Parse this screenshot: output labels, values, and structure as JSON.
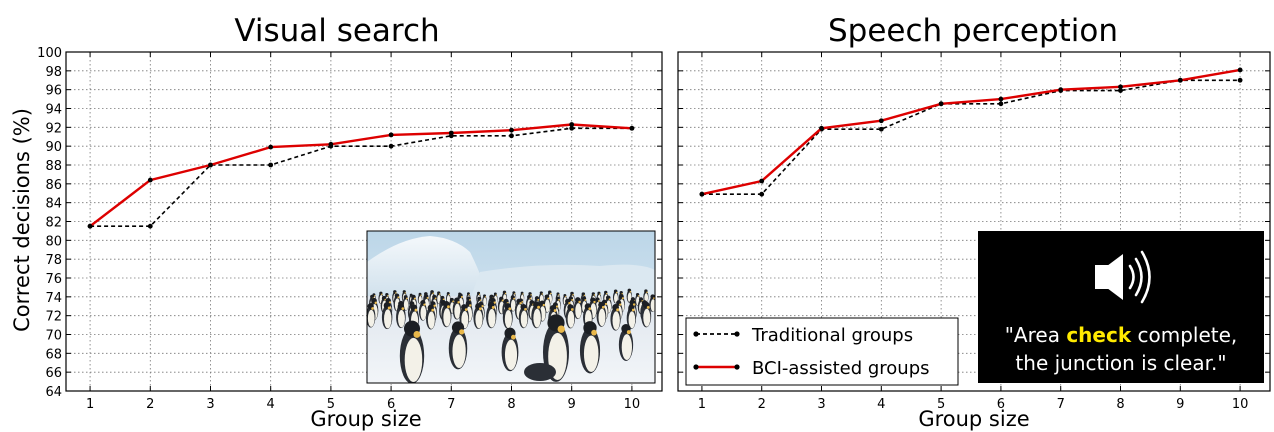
{
  "chart_data": [
    {
      "type": "line",
      "title": "Visual search",
      "xlabel": "Group size",
      "ylabel": "Correct decisions (%)",
      "xlim": [
        0.6,
        10.5
      ],
      "ylim": [
        64,
        100
      ],
      "grid": true,
      "x_ticks": [
        "1",
        "2",
        "3",
        "4",
        "5",
        "6",
        "7",
        "8",
        "9",
        "10"
      ],
      "y_ticks": [
        "64",
        "66",
        "68",
        "70",
        "72",
        "74",
        "76",
        "78",
        "80",
        "82",
        "84",
        "86",
        "88",
        "90",
        "92",
        "94",
        "96",
        "98",
        "100"
      ],
      "x": [
        1,
        2,
        3,
        4,
        5,
        6,
        7,
        8,
        9,
        10
      ],
      "series": [
        {
          "name": "Traditional groups",
          "color": "#000000",
          "style": "dashed",
          "values": [
            81.5,
            81.5,
            88.0,
            88.0,
            90.0,
            90.0,
            91.1,
            91.1,
            91.9,
            91.9
          ]
        },
        {
          "name": "BCI-assisted groups",
          "color": "#dd0000",
          "style": "solid",
          "values": [
            81.5,
            86.4,
            88.0,
            89.9,
            90.2,
            91.2,
            91.4,
            91.7,
            92.3,
            91.9
          ]
        }
      ],
      "inset": {
        "kind": "photo",
        "icon": "penguins-photo"
      }
    },
    {
      "type": "line",
      "title": "Speech perception",
      "xlabel": "Group size",
      "xlim": [
        0.6,
        10.5
      ],
      "ylim": [
        64,
        100
      ],
      "grid": true,
      "x_ticks": [
        "1",
        "2",
        "3",
        "4",
        "5",
        "6",
        "7",
        "8",
        "9",
        "10"
      ],
      "x": [
        1,
        2,
        3,
        4,
        5,
        6,
        7,
        8,
        9,
        10
      ],
      "series": [
        {
          "name": "Traditional groups",
          "color": "#000000",
          "style": "dashed",
          "values": [
            84.9,
            84.9,
            91.8,
            91.8,
            94.5,
            94.5,
            95.9,
            95.9,
            97.0,
            97.0
          ]
        },
        {
          "name": "BCI-assisted groups",
          "color": "#dd0000",
          "style": "solid",
          "values": [
            84.9,
            86.3,
            91.9,
            92.7,
            94.5,
            95.0,
            96.0,
            96.3,
            97.0,
            98.1
          ]
        }
      ],
      "legend": {
        "placement": "lower-left",
        "entries": [
          "Traditional groups",
          "BCI-assisted groups"
        ]
      },
      "inset": {
        "kind": "speech-card",
        "icon": "speaker-icon",
        "quote_before": "\"Area ",
        "quote_highlight": "check",
        "quote_after": " complete,",
        "quote_line2": "the junction is clear.\""
      }
    }
  ]
}
